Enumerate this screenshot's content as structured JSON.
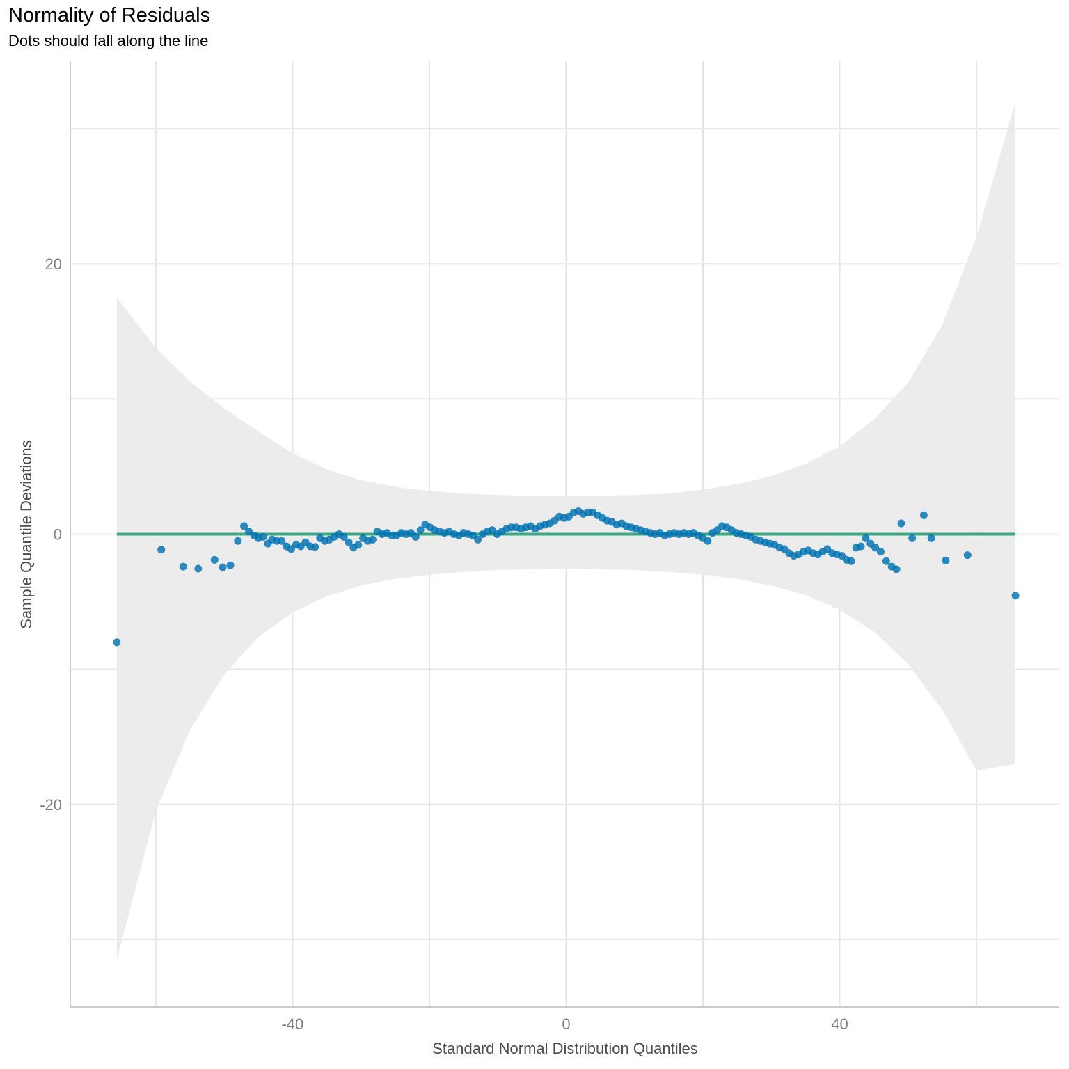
{
  "chart_data": {
    "type": "scatter",
    "title": "Normality of Residuals",
    "subtitle": "Dots should fall along the line",
    "xlabel": "Standard Normal Distribution Quantiles",
    "ylabel": "Sample Quantile Deviations",
    "xlim": [
      -72.5,
      72
    ],
    "ylim": [
      -35,
      35
    ],
    "x_ticks": [
      -40,
      0,
      40
    ],
    "x_tick_labels": [
      "-40",
      "0",
      "40"
    ],
    "x_minor_gridlines": [
      -60,
      -20,
      20,
      60
    ],
    "y_ticks": [
      20,
      0,
      -20
    ],
    "y_tick_labels": [
      "20",
      "0",
      "-20"
    ],
    "y_minor_gridlines": [
      30,
      10,
      -10,
      -30
    ],
    "grid": true,
    "colors": {
      "points": "#0072B2",
      "reference_line": "#3AAA85",
      "band": "#EBEBEB",
      "grid": "#E5E5E5",
      "axis": "#CCCCCC"
    },
    "reference_line": {
      "x": [
        -65.7,
        65.7
      ],
      "y": [
        0,
        0
      ]
    },
    "confidence_band": {
      "x": [
        -65.7,
        -60,
        -55,
        -50,
        -45,
        -40,
        -35,
        -30,
        -25,
        -20,
        -15,
        -10,
        -5,
        0,
        5,
        10,
        15,
        20,
        25,
        30,
        35,
        40,
        45,
        50,
        55,
        60,
        65.7
      ],
      "upper": [
        17.5,
        13.8,
        11.3,
        9.3,
        7.6,
        6.0,
        4.8,
        4.0,
        3.5,
        3.2,
        3.0,
        2.9,
        2.85,
        2.8,
        2.85,
        2.9,
        3.0,
        3.3,
        3.7,
        4.3,
        5.2,
        6.5,
        8.5,
        11.2,
        15.5,
        22.0,
        32.0
      ],
      "lower": [
        -31.5,
        -20.5,
        -14.5,
        -10.4,
        -7.6,
        -5.8,
        -4.6,
        -3.8,
        -3.3,
        -3.0,
        -2.8,
        -2.65,
        -2.6,
        -2.55,
        -2.6,
        -2.65,
        -2.8,
        -3.0,
        -3.3,
        -3.8,
        -4.5,
        -5.6,
        -7.2,
        -9.6,
        -13.0,
        -17.5,
        -17.0
      ]
    },
    "points": {
      "x": [
        -65.7,
        -59.2,
        -56.0,
        -53.8,
        -51.4,
        -50.2,
        -49.1,
        -48.0,
        -47.1,
        -46.4,
        -45.6,
        -45.0,
        -44.3,
        -43.6,
        -43.0,
        -42.3,
        -41.6,
        -40.9,
        -40.2,
        -39.5,
        -38.8,
        -38.1,
        -37.4,
        -36.7,
        -36.0,
        -35.3,
        -34.6,
        -33.9,
        -33.2,
        -32.5,
        -31.8,
        -31.1,
        -30.4,
        -29.7,
        -29.0,
        -28.3,
        -27.6,
        -26.9,
        -26.2,
        -25.5,
        -24.8,
        -24.1,
        -23.4,
        -22.7,
        -22.0,
        -21.3,
        -20.6,
        -19.9,
        -19.2,
        -18.5,
        -17.8,
        -17.1,
        -16.4,
        -15.7,
        -15.0,
        -14.3,
        -13.6,
        -12.9,
        -12.2,
        -11.5,
        -10.8,
        -10.1,
        -9.4,
        -8.7,
        -8.0,
        -7.3,
        -6.6,
        -5.9,
        -5.2,
        -4.5,
        -3.8,
        -3.1,
        -2.4,
        -1.7,
        -1.0,
        -0.3,
        0.4,
        1.1,
        1.8,
        2.5,
        3.2,
        3.9,
        4.6,
        5.3,
        6.0,
        6.7,
        7.4,
        8.1,
        8.8,
        9.5,
        10.2,
        10.9,
        11.6,
        12.3,
        13.0,
        13.7,
        14.4,
        15.1,
        15.8,
        16.5,
        17.2,
        17.9,
        18.6,
        19.3,
        20.0,
        20.7,
        21.4,
        22.1,
        22.8,
        23.5,
        24.2,
        24.9,
        25.6,
        26.3,
        27.0,
        27.7,
        28.4,
        29.1,
        29.8,
        30.5,
        31.2,
        31.9,
        32.6,
        33.3,
        34.0,
        34.7,
        35.4,
        36.1,
        36.8,
        37.5,
        38.2,
        38.9,
        39.6,
        40.3,
        41.0,
        41.7,
        42.4,
        43.1,
        43.8,
        44.5,
        45.2,
        46.0,
        46.8,
        47.6,
        48.3,
        49.0,
        50.6,
        52.3,
        53.4,
        55.5,
        58.7,
        65.7
      ],
      "y": [
        -8.0,
        -1.15,
        -2.4,
        -2.55,
        -1.9,
        -2.45,
        -2.3,
        -0.5,
        0.6,
        0.2,
        -0.1,
        -0.3,
        -0.2,
        -0.7,
        -0.4,
        -0.5,
        -0.5,
        -0.9,
        -1.1,
        -0.8,
        -0.9,
        -0.6,
        -0.9,
        -0.95,
        -0.3,
        -0.5,
        -0.4,
        -0.2,
        0.0,
        -0.2,
        -0.6,
        -1.0,
        -0.8,
        -0.3,
        -0.5,
        -0.4,
        0.2,
        0.0,
        0.1,
        -0.1,
        -0.1,
        0.1,
        0.0,
        0.1,
        -0.2,
        0.3,
        0.7,
        0.5,
        0.3,
        0.2,
        0.1,
        0.2,
        0.0,
        -0.1,
        0.1,
        0.0,
        -0.1,
        -0.4,
        0.0,
        0.2,
        0.3,
        0.0,
        0.2,
        0.4,
        0.5,
        0.5,
        0.4,
        0.5,
        0.6,
        0.4,
        0.6,
        0.7,
        0.8,
        1.0,
        1.3,
        1.2,
        1.3,
        1.6,
        1.7,
        1.5,
        1.6,
        1.6,
        1.4,
        1.2,
        1.0,
        0.9,
        0.7,
        0.8,
        0.6,
        0.5,
        0.4,
        0.3,
        0.2,
        0.1,
        0.0,
        0.1,
        -0.1,
        0.0,
        0.1,
        0.0,
        0.1,
        0.0,
        0.1,
        -0.1,
        -0.3,
        -0.5,
        0.1,
        0.3,
        0.6,
        0.5,
        0.3,
        0.1,
        0.0,
        -0.1,
        -0.2,
        -0.4,
        -0.5,
        -0.6,
        -0.7,
        -0.8,
        -1.0,
        -1.1,
        -1.4,
        -1.6,
        -1.5,
        -1.3,
        -1.2,
        -1.4,
        -1.5,
        -1.3,
        -1.1,
        -1.4,
        -1.5,
        -1.6,
        -1.9,
        -2.0,
        -1.0,
        -0.9,
        -0.3,
        -0.7,
        -1.0,
        -1.3,
        -2.0,
        -2.4,
        -2.6,
        0.8,
        -0.3,
        1.4,
        -0.3,
        -1.95,
        -1.55,
        -4.55
      ]
    }
  }
}
